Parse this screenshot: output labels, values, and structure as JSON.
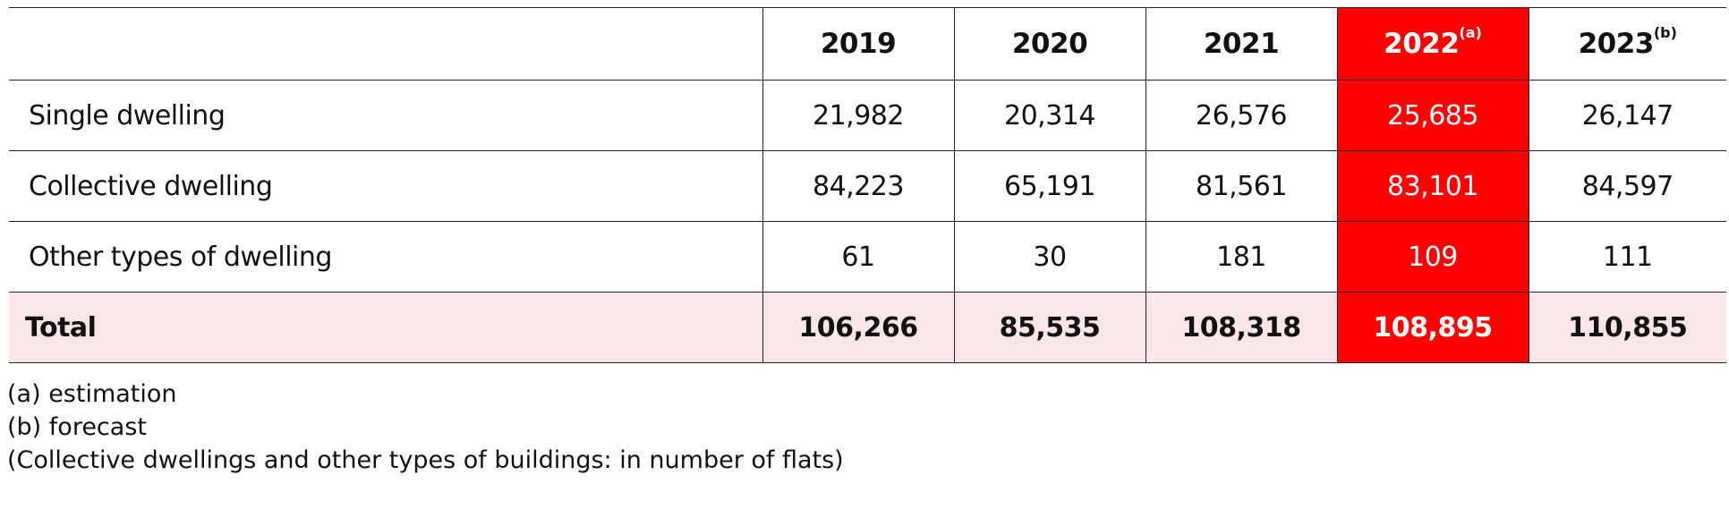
{
  "table": {
    "columns": [
      {
        "year": "2019",
        "note": ""
      },
      {
        "year": "2020",
        "note": ""
      },
      {
        "year": "2021",
        "note": ""
      },
      {
        "year": "2022",
        "note": "(a)"
      },
      {
        "year": "2023",
        "note": "(b)"
      }
    ],
    "highlight_color": "#ff0000",
    "total_row_color": "#fbe6e7",
    "rows": [
      {
        "label": "Single dwelling",
        "values": [
          "21,982",
          "20,314",
          "26,576",
          "25,685",
          "26,147"
        ]
      },
      {
        "label": "Collective dwelling",
        "values": [
          "84,223",
          "65,191",
          "81,561",
          "83,101",
          "84,597"
        ]
      },
      {
        "label": "Other types of dwelling",
        "values": [
          "61",
          "30",
          "181",
          "109",
          "111"
        ]
      }
    ],
    "total": {
      "label": "Total",
      "values": [
        "106,266",
        "85,535",
        "108,318",
        "108,895",
        "110,855"
      ]
    }
  },
  "notes": [
    "(a) estimation",
    "(b) forecast",
    "(Collective dwellings and other types of buildings: in number of flats)"
  ]
}
